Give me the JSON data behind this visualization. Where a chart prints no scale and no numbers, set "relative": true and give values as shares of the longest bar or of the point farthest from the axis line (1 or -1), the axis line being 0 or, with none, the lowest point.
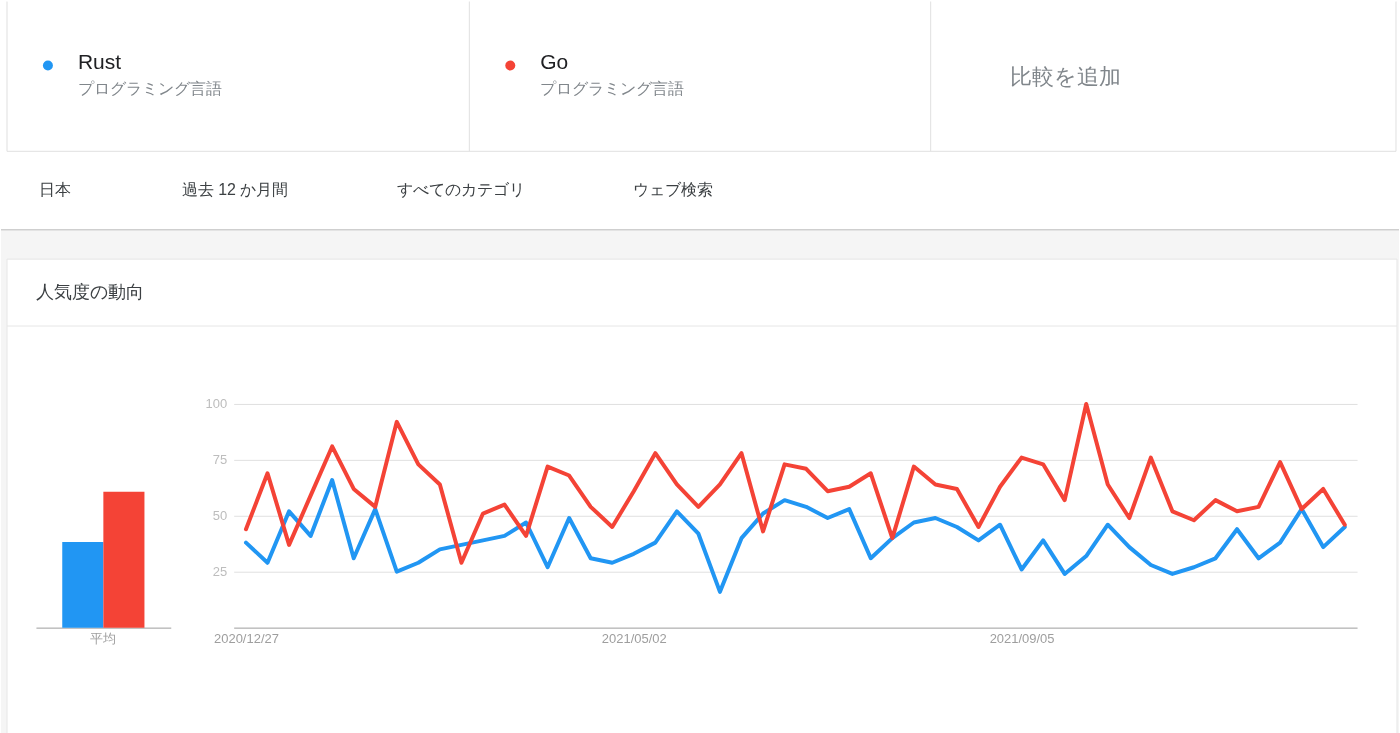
{
  "chart_data": [
    {
      "type": "other",
      "annotations": [
        "プログラミング言語",
        "プログラミング言語",
        "比較を追加",
        "日本",
        "過去 12 か月間",
        "すべてのカテゴリ",
        "ウェブ検索"
      ]
    },
    {
      "type": "bar",
      "categories": [
        "平均"
      ],
      "relative": true,
      "series": [
        {
          "color": "#2196f3",
          "values": [
            0.63
          ]
        },
        {
          "color": "#f44336",
          "values": [
            1
          ]
        }
      ]
    },
    {
      "type": "line",
      "title": "人気度の動向",
      "legend": "top",
      "grid": "y",
      "x": [
        "2020-12-27",
        "2021-01-03",
        "2021-01-10",
        "2021-01-17",
        "2021-01-24",
        "2021-01-31",
        "2021-02-07",
        "2021-02-14",
        "2021-02-21",
        "2021-02-28",
        "2021-03-07",
        "2021-03-14",
        "2021-03-21",
        "2021-03-28",
        "2021-04-04",
        "2021-04-11",
        "2021-04-18",
        "2021-04-25",
        "2021-05-02",
        "2021-05-09",
        "2021-05-16",
        "2021-05-23",
        "2021-05-30",
        "2021-06-06",
        "2021-06-13",
        "2021-06-20",
        "2021-06-27",
        "2021-07-04",
        "2021-07-11",
        "2021-07-18",
        "2021-07-25",
        "2021-08-01",
        "2021-08-08",
        "2021-08-15",
        "2021-08-22",
        "2021-08-29",
        "2021-09-05",
        "2021-09-12",
        "2021-09-19",
        "2021-09-26",
        "2021-10-03",
        "2021-10-10",
        "2021-10-17",
        "2021-10-24",
        "2021-10-31",
        "2021-11-07",
        "2021-11-14",
        "2021-11-21",
        "2021-11-28",
        "2021-12-05",
        "2021-12-12",
        "2021-12-19"
      ],
      "series": [
        {
          "name": "Rust",
          "color": "#2196f3",
          "values": [
            38,
            29,
            52,
            41,
            66,
            31,
            53,
            25,
            29,
            35,
            37,
            39,
            41,
            47,
            27,
            49,
            31,
            29,
            33,
            38,
            52,
            42,
            16,
            40,
            51,
            57,
            54,
            49,
            53,
            31,
            40,
            47,
            49,
            45,
            39,
            46,
            26,
            39,
            24,
            32,
            46,
            36,
            28,
            24,
            27,
            31,
            44,
            31,
            38,
            53,
            36,
            45
          ]
        },
        {
          "name": "Go",
          "color": "#f44336",
          "values": [
            44,
            69,
            37,
            59,
            81,
            62,
            54,
            92,
            73,
            64,
            29,
            51,
            55,
            41,
            72,
            68,
            54,
            45,
            61,
            78,
            64,
            54,
            64,
            78,
            43,
            73,
            71,
            61,
            63,
            69,
            40,
            72,
            64,
            62,
            45,
            63,
            76,
            73,
            57,
            100,
            64,
            49,
            76,
            52,
            48,
            57,
            52,
            54,
            74,
            53,
            62,
            46
          ]
        }
      ],
      "xlim": [
        "2020-12-23",
        "2021-12-23"
      ],
      "xticks": [
        {
          "value": "2020-12-27",
          "label": "2020/12/27"
        },
        {
          "value": "2021-05-02",
          "label": "2021/05/02"
        },
        {
          "value": "2021-09-05",
          "label": "2021/09/05"
        }
      ],
      "ylim": [
        0,
        100
      ],
      "yticks": [
        25,
        50,
        75,
        100
      ]
    }
  ]
}
